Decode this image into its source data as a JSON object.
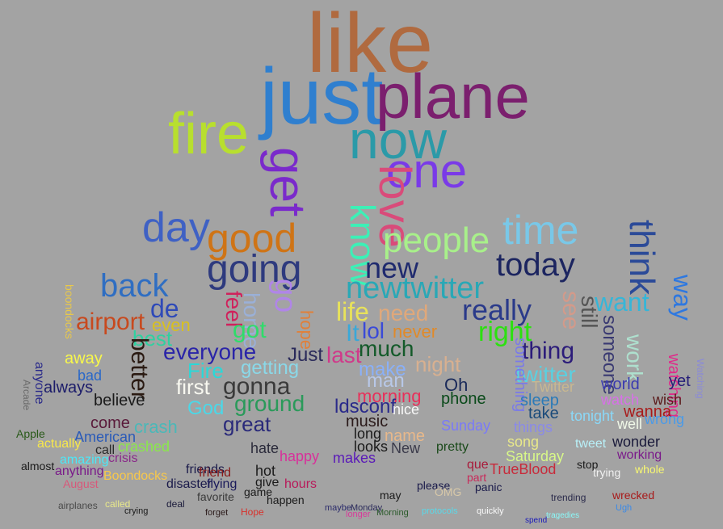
{
  "words": [
    {
      "text": "like",
      "color": "#b06a3f"
    },
    {
      "text": "just",
      "color": "#2f7fcf"
    },
    {
      "text": "plane",
      "color": "#7b1f6e"
    },
    {
      "text": "fire",
      "color": "#b8df2e"
    },
    {
      "text": "now",
      "color": "#2b9aa8"
    },
    {
      "text": "get",
      "color": "#7a2acb"
    },
    {
      "text": "one",
      "color": "#7a3ae8"
    },
    {
      "text": "love",
      "color": "#d94b7a"
    },
    {
      "text": "know",
      "color": "#3cf0b6"
    },
    {
      "text": "day",
      "color": "#3f61c4"
    },
    {
      "text": "good",
      "color": "#cf7416"
    },
    {
      "text": "people",
      "color": "#a8f08a"
    },
    {
      "text": "time",
      "color": "#79c8e8"
    },
    {
      "text": "think",
      "color": "#2b4a98"
    },
    {
      "text": "going",
      "color": "#2e3a7e"
    },
    {
      "text": "go",
      "color": "#b085e8"
    },
    {
      "text": "new",
      "color": "#1f2a6e"
    },
    {
      "text": "today",
      "color": "#1c2560"
    },
    {
      "text": "back",
      "color": "#2f6ec2"
    },
    {
      "text": "newtwitter",
      "color": "#2aa8b6"
    },
    {
      "text": "de",
      "color": "#2f4ab8"
    },
    {
      "text": "feel",
      "color": "#d0215c"
    },
    {
      "text": "home",
      "color": "#9ab0d8"
    },
    {
      "text": "life",
      "color": "#e8e25a"
    },
    {
      "text": "need",
      "color": "#e0a87a"
    },
    {
      "text": "really",
      "color": "#2a3a8a"
    },
    {
      "text": "see",
      "color": "#d39a8a"
    },
    {
      "text": "still",
      "color": "#555555"
    },
    {
      "text": "want",
      "color": "#36b6d8"
    },
    {
      "text": "way",
      "color": "#2e78e0"
    },
    {
      "text": "airport",
      "color": "#c8491e"
    },
    {
      "text": "even",
      "color": "#d8c020"
    },
    {
      "text": "got",
      "color": "#2fdc6a"
    },
    {
      "text": "hope",
      "color": "#e0803a"
    },
    {
      "text": "It",
      "color": "#3aa8d8"
    },
    {
      "text": "lol",
      "color": "#3a4ad8"
    },
    {
      "text": "never",
      "color": "#e08a2a"
    },
    {
      "text": "right",
      "color": "#2ce010"
    },
    {
      "text": "best",
      "color": "#30d0a0"
    },
    {
      "text": "everyone",
      "color": "#2a24a8"
    },
    {
      "text": "Just",
      "color": "#2a2a5a"
    },
    {
      "text": "last",
      "color": "#d03a8a"
    },
    {
      "text": "much",
      "color": "#145a2a"
    },
    {
      "text": "thing",
      "color": "#2c1c7a"
    },
    {
      "text": "work",
      "color": "#aee0ce"
    },
    {
      "text": "someone",
      "color": "#3a3a72"
    },
    {
      "text": "better",
      "color": "#2a1a12"
    },
    {
      "text": "Fire",
      "color": "#2ad8d8"
    },
    {
      "text": "getting",
      "color": "#8ad8e8"
    },
    {
      "text": "make",
      "color": "#8ab0f8"
    },
    {
      "text": "night",
      "color": "#d8b090"
    },
    {
      "text": "twitter",
      "color": "#5ad0e0"
    },
    {
      "text": "something",
      "color": "#7a7ae8"
    },
    {
      "text": "watching",
      "color": "#e02a8a"
    },
    {
      "text": "yet",
      "color": "#241c78"
    },
    {
      "text": "away",
      "color": "#f8f84a"
    },
    {
      "text": "always",
      "color": "#1c1c6a"
    },
    {
      "text": "bad",
      "color": "#2a68c8"
    },
    {
      "text": "first",
      "color": "#f8f8f0"
    },
    {
      "text": "gonna",
      "color": "#3a3a3a"
    },
    {
      "text": "man",
      "color": "#b8c8e8"
    },
    {
      "text": "morning",
      "color": "#e8305a"
    },
    {
      "text": "Oh",
      "color": "#1a2a5a"
    },
    {
      "text": "phone",
      "color": "#0a4a1a"
    },
    {
      "text": "world",
      "color": "#3a3ab0"
    },
    {
      "text": "watch",
      "color": "#d870e8"
    },
    {
      "text": "wish",
      "color": "#5a1a1a"
    },
    {
      "text": "believe",
      "color": "#1a1a1a"
    },
    {
      "text": "ground",
      "color": "#2a9a5a"
    },
    {
      "text": "God",
      "color": "#4ad8e8"
    },
    {
      "text": "ldsconf",
      "color": "#2a2a8a"
    },
    {
      "text": "nice",
      "color": "#f8f8f8"
    },
    {
      "text": "sleep",
      "color": "#2a7ab8"
    },
    {
      "text": "take",
      "color": "#1a4a7a"
    },
    {
      "text": "wanna",
      "color": "#a81a1a"
    },
    {
      "text": "come",
      "color": "#5a1a3a"
    },
    {
      "text": "crash",
      "color": "#4ab8b8"
    },
    {
      "text": "great",
      "color": "#2a2a7a"
    },
    {
      "text": "music",
      "color": "#2a1a1a"
    },
    {
      "text": "Sunday",
      "color": "#7a7af8"
    },
    {
      "text": "things",
      "color": "#8a8ae8"
    },
    {
      "text": "tonight",
      "color": "#8ad8f8"
    },
    {
      "text": "well",
      "color": "#f0f8e8"
    },
    {
      "text": "wrong",
      "color": "#4a9ae8"
    },
    {
      "text": "American",
      "color": "#2a5ab8"
    },
    {
      "text": "crashed",
      "color": "#8ae84a"
    },
    {
      "text": "long",
      "color": "#1a1a1a"
    },
    {
      "text": "name",
      "color": "#e8b88a"
    },
    {
      "text": "song",
      "color": "#e8e88a"
    },
    {
      "text": "wonder",
      "color": "#1a1a3a"
    },
    {
      "text": "actually",
      "color": "#f8e84a"
    },
    {
      "text": "call",
      "color": "#2a2a2a"
    },
    {
      "text": "hate",
      "color": "#2a2a3a"
    },
    {
      "text": "looks",
      "color": "#1a1a1a"
    },
    {
      "text": "New",
      "color": "#3a3a4a"
    },
    {
      "text": "pretty",
      "color": "#1a4a1a"
    },
    {
      "text": "tweet",
      "color": "#b8f0f8"
    },
    {
      "text": "working",
      "color": "#7a1a8a"
    },
    {
      "text": "amazing",
      "color": "#4ae8f8"
    },
    {
      "text": "crisis",
      "color": "#8a2a8a"
    },
    {
      "text": "happy",
      "color": "#d8309a"
    },
    {
      "text": "makes",
      "color": "#5a1ab8"
    },
    {
      "text": "Saturday",
      "color": "#d8f888"
    },
    {
      "text": "almost",
      "color": "#1a1a1a"
    },
    {
      "text": "friends",
      "color": "#1a1a4a"
    },
    {
      "text": "hot",
      "color": "#1a1a1a"
    },
    {
      "text": "que",
      "color": "#a81a3a"
    },
    {
      "text": "stop",
      "color": "#1a1a1a"
    },
    {
      "text": "whole",
      "color": "#f8f870"
    },
    {
      "text": "anything",
      "color": "#7a1a8a"
    },
    {
      "text": "friend",
      "color": "#8a1a1a"
    },
    {
      "text": "TrueBlood",
      "color": "#c82a3a"
    },
    {
      "text": "trying",
      "color": "#f0f0f0"
    },
    {
      "text": "Boondocks",
      "color": "#f8c84a"
    },
    {
      "text": "disaster",
      "color": "#1a1a4a"
    },
    {
      "text": "flying",
      "color": "#1a1a5a"
    },
    {
      "text": "give",
      "color": "#1a1a1a"
    },
    {
      "text": "hours",
      "color": "#b81a5a"
    },
    {
      "text": "please",
      "color": "#1a1a4a"
    },
    {
      "text": "part",
      "color": "#c82a5a"
    },
    {
      "text": "panic",
      "color": "#1a1a4a"
    },
    {
      "text": "August",
      "color": "#d8587a"
    },
    {
      "text": "favorite",
      "color": "#3a3a3a"
    },
    {
      "text": "game",
      "color": "#1a1a1a"
    },
    {
      "text": "happen",
      "color": "#1a1a1a"
    },
    {
      "text": "may",
      "color": "#1a1a1a"
    },
    {
      "text": "OMG",
      "color": "#d8c8a8"
    },
    {
      "text": "trending",
      "color": "#2a2a4a"
    },
    {
      "text": "wrecked",
      "color": "#a81a1a"
    },
    {
      "text": "airplanes",
      "color": "#4a4a4a"
    },
    {
      "text": "called",
      "color": "#e8e88a"
    },
    {
      "text": "crying",
      "color": "#1a1a1a"
    },
    {
      "text": "deal",
      "color": "#1a1a3a"
    },
    {
      "text": "forget",
      "color": "#2a1a1a"
    },
    {
      "text": "Hope",
      "color": "#d8302a"
    },
    {
      "text": "maybe",
      "color": "#2a2a6a"
    },
    {
      "text": "Monday",
      "color": "#2a2a5a"
    },
    {
      "text": "longer",
      "color": "#d83a9a"
    },
    {
      "text": "Morning",
      "color": "#2a5a2a"
    },
    {
      "text": "protocols",
      "color": "#5ad8e8"
    },
    {
      "text": "quickly",
      "color": "#f8f8f8"
    },
    {
      "text": "spend",
      "color": "#1a1ab8"
    },
    {
      "text": "tragedies",
      "color": "#8af8f8"
    },
    {
      "text": "Ugh",
      "color": "#3a8ae8"
    },
    {
      "text": "Apple",
      "color": "#2a5a1a"
    },
    {
      "text": "Arcade",
      "color": "#6a6a6a"
    },
    {
      "text": "anyone",
      "color": "#2a2a8a"
    },
    {
      "text": "boondocks",
      "color": "#e8c84a"
    },
    {
      "text": "Twitter",
      "color": "#c8b890"
    },
    {
      "text": "Watching",
      "color": "#8a8ad8"
    }
  ]
}
